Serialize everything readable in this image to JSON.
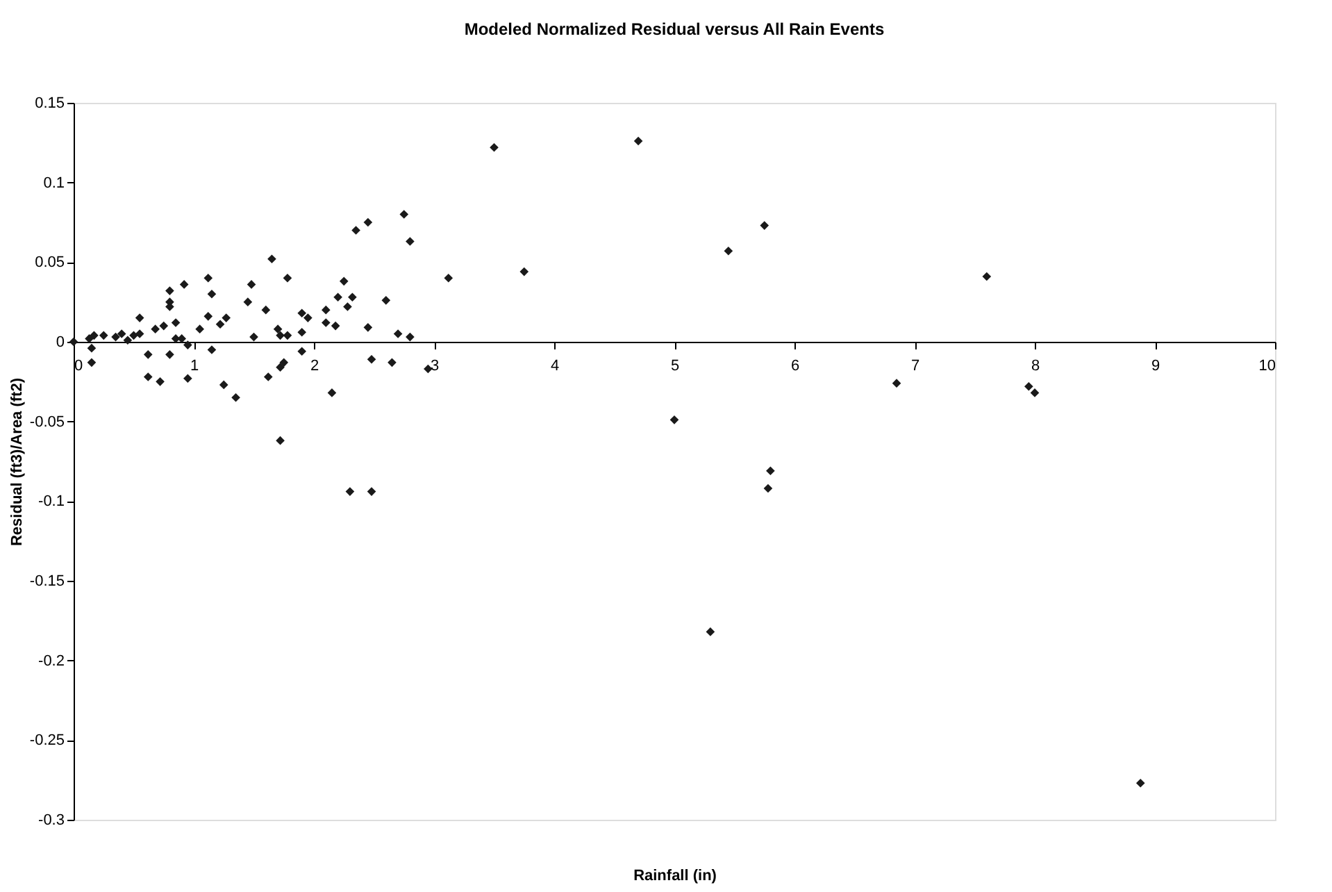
{
  "chart_data": {
    "type": "scatter",
    "title": "Modeled Normalized Residual versus All Rain Events",
    "xlabel": "Rainfall (in)",
    "ylabel": "Residual (ft3)/Area (ft2)",
    "marker": "diamond",
    "grid": false,
    "legend": false,
    "xlim": [
      0,
      10
    ],
    "xticks": [
      0,
      1,
      2,
      3,
      4,
      5,
      6,
      7,
      8,
      9,
      10
    ],
    "ylim": [
      -0.3,
      0.15
    ],
    "yticks": [
      -0.3,
      -0.25,
      -0.2,
      -0.15,
      -0.1,
      -0.05,
      0,
      0.05,
      0.1,
      0.15
    ],
    "series": [
      {
        "color": "#1a1a1a",
        "x": [
          0,
          0.13,
          0.15,
          0.17,
          0.15,
          0.25,
          0.35,
          0.4,
          0.45,
          0.5,
          0.55,
          0.55,
          0.62,
          0.62,
          0.68,
          0.72,
          0.75,
          0.8,
          0.8,
          0.8,
          0.8,
          0.85,
          0.85,
          0.9,
          0.92,
          0.95,
          0.95,
          1.05,
          1.12,
          1.12,
          1.15,
          1.15,
          1.22,
          1.25,
          1.27,
          1.35,
          1.45,
          1.48,
          1.5,
          1.6,
          1.62,
          1.65,
          1.7,
          1.72,
          1.72,
          1.75,
          1.72,
          1.78,
          1.78,
          1.9,
          1.9,
          1.95,
          1.9,
          2.1,
          2.1,
          2.18,
          2.15,
          2.2,
          2.25,
          2.28,
          2.32,
          2.3,
          2.35,
          2.45,
          2.45,
          2.48,
          2.48,
          2.6,
          2.65,
          2.7,
          2.75,
          2.8,
          2.8,
          2.95,
          3.12,
          3.5,
          3.75,
          4.7,
          5.0,
          5.3,
          5.45,
          5.75,
          5.8,
          5.78,
          6.85,
          7.6,
          7.95,
          8.0,
          8.88
        ],
        "values": [
          0,
          0.002,
          -0.004,
          0.004,
          -0.013,
          0.004,
          0.003,
          0.005,
          0.001,
          0.004,
          0.015,
          0.005,
          -0.008,
          -0.022,
          0.008,
          -0.025,
          0.01,
          0.032,
          0.025,
          0.022,
          -0.008,
          0.012,
          0.002,
          0.002,
          0.036,
          -0.002,
          -0.023,
          0.008,
          0.04,
          0.016,
          0.03,
          -0.005,
          0.011,
          -0.027,
          0.015,
          -0.035,
          0.025,
          0.036,
          0.003,
          0.02,
          -0.022,
          0.052,
          0.008,
          0.004,
          -0.016,
          -0.013,
          -0.062,
          0.04,
          0.004,
          0.018,
          0.006,
          0.015,
          -0.006,
          0.02,
          0.012,
          0.01,
          -0.032,
          0.028,
          0.038,
          0.022,
          0.028,
          -0.094,
          0.07,
          0.075,
          0.009,
          -0.011,
          -0.094,
          0.026,
          -0.013,
          0.005,
          0.08,
          0.063,
          0.003,
          -0.017,
          0.04,
          0.122,
          0.044,
          0.126,
          -0.049,
          -0.182,
          0.057,
          0.073,
          -0.081,
          -0.092,
          -0.026,
          0.041,
          -0.028,
          -0.032,
          -0.277
        ]
      }
    ]
  }
}
